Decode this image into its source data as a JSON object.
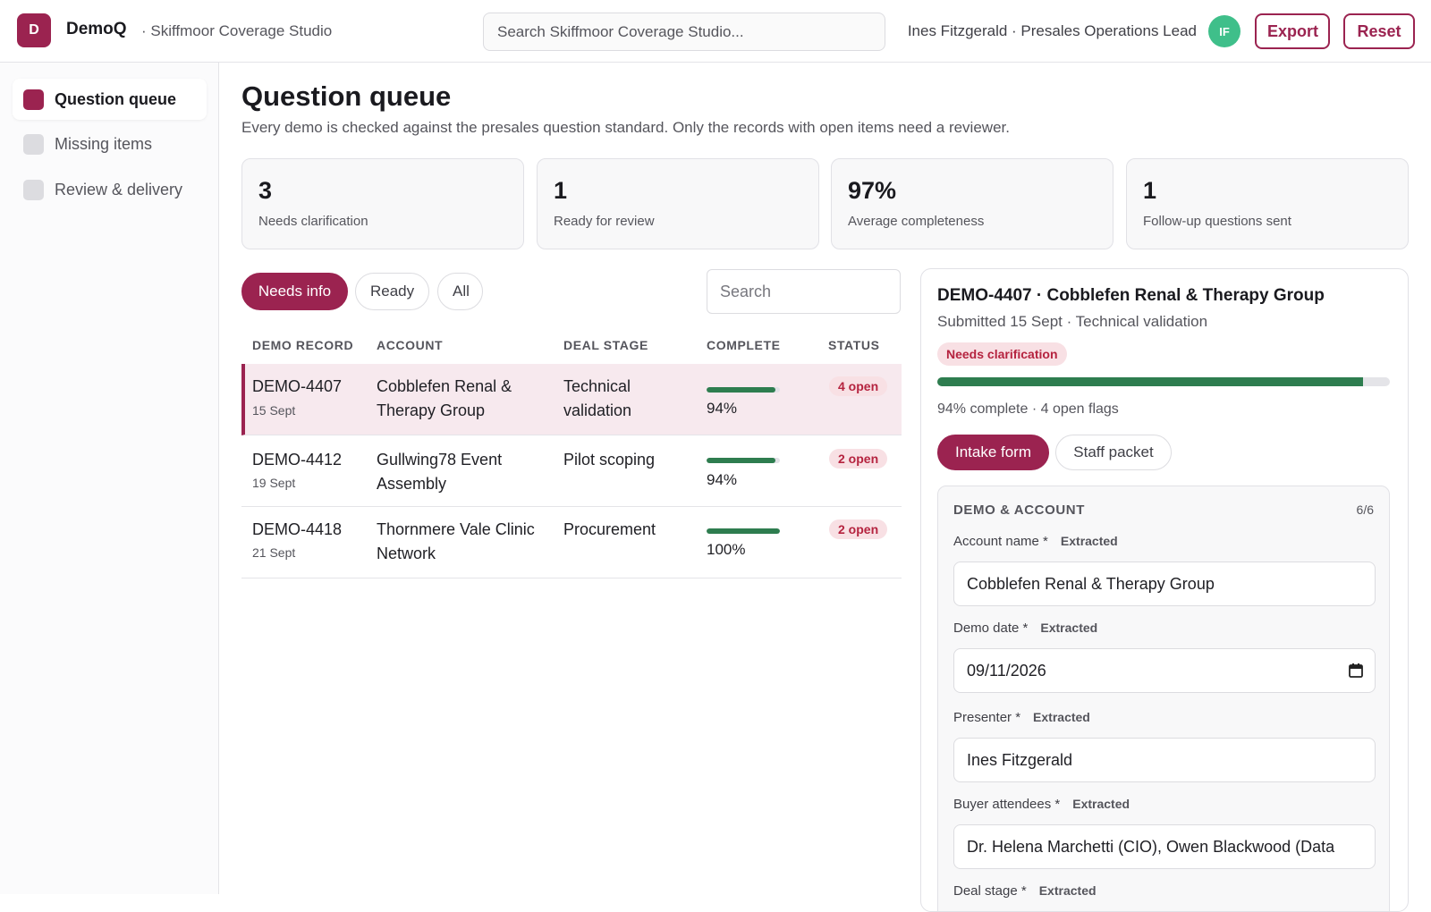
{
  "app": {
    "logo_letter": "D",
    "name": "DemoQ",
    "subtitle": "· Skiffmoor Coverage Studio",
    "search_placeholder": "Search Skiffmoor Coverage Studio...",
    "user": "Ines Fitzgerald · Presales Operations Lead",
    "avatar_initials": "IF",
    "export_label": "Export",
    "reset_label": "Reset",
    "accent_color": "#9b2350"
  },
  "sidebar": {
    "items": [
      {
        "label": "Question queue",
        "active": true
      },
      {
        "label": "Missing items",
        "active": false
      },
      {
        "label": "Review & delivery",
        "active": false
      }
    ]
  },
  "page": {
    "title": "Question queue",
    "subtitle": "Every demo is checked against the presales question standard. Only the records with open items need a reviewer."
  },
  "stats": [
    {
      "value": "3",
      "label": "Needs clarification"
    },
    {
      "value": "1",
      "label": "Ready for review"
    },
    {
      "value": "97%",
      "label": "Average completeness"
    },
    {
      "value": "1",
      "label": "Follow-up questions sent"
    }
  ],
  "filters": {
    "needs_info": "Needs info",
    "ready": "Ready",
    "all": "All",
    "active": "needs_info",
    "search_placeholder": "Search"
  },
  "table": {
    "headers": {
      "record": "DEMO RECORD",
      "account": "ACCOUNT",
      "stage": "DEAL STAGE",
      "complete": "COMPLETE",
      "status": "STATUS"
    },
    "rows": [
      {
        "id": "DEMO-4407",
        "date": "15 Sept",
        "account_l1": "Cobblefen Renal &",
        "account_l2": "Therapy Group",
        "stage_l1": "Technical",
        "stage_l2": "validation",
        "complete": 94,
        "complete_label": "94%",
        "status": "4 open",
        "selected": true
      },
      {
        "id": "DEMO-4412",
        "date": "19 Sept",
        "account_l1": "Gullwing78 Event",
        "account_l2": "Assembly",
        "stage_l1": "Pilot scoping",
        "stage_l2": "",
        "complete": 94,
        "complete_label": "94%",
        "status": "2 open",
        "selected": false
      },
      {
        "id": "DEMO-4418",
        "date": "21 Sept",
        "account_l1": "Thornmere Vale Clinic",
        "account_l2": "Network",
        "stage_l1": "Procurement",
        "stage_l2": "",
        "complete": 100,
        "complete_label": "100%",
        "status": "2 open",
        "selected": false
      }
    ]
  },
  "detail": {
    "title": "DEMO-4407 · Cobblefen Renal & Therapy Group",
    "subtitle": "Submitted 15 Sept · Technical validation",
    "badge": "Needs clarification",
    "progress": 94,
    "meta": "94% complete · 4 open flags",
    "tabs": {
      "intake": "Intake form",
      "staff": "Staff packet"
    },
    "section": {
      "title": "DEMO & ACCOUNT",
      "count": "6/6",
      "fields": [
        {
          "label": "Account name *",
          "tag": "Extracted",
          "value": "Cobblefen Renal & Therapy Group"
        },
        {
          "label": "Demo date *",
          "tag": "Extracted",
          "value": "09/11/2026"
        },
        {
          "label": "Presenter *",
          "tag": "Extracted",
          "value": "Ines Fitzgerald"
        },
        {
          "label": "Buyer attendees *",
          "tag": "Extracted",
          "value": "Dr. Helena Marchetti (CIO), Owen Blackwood (Data"
        },
        {
          "label": "Deal stage *",
          "tag": "Extracted",
          "value": ""
        }
      ]
    }
  }
}
